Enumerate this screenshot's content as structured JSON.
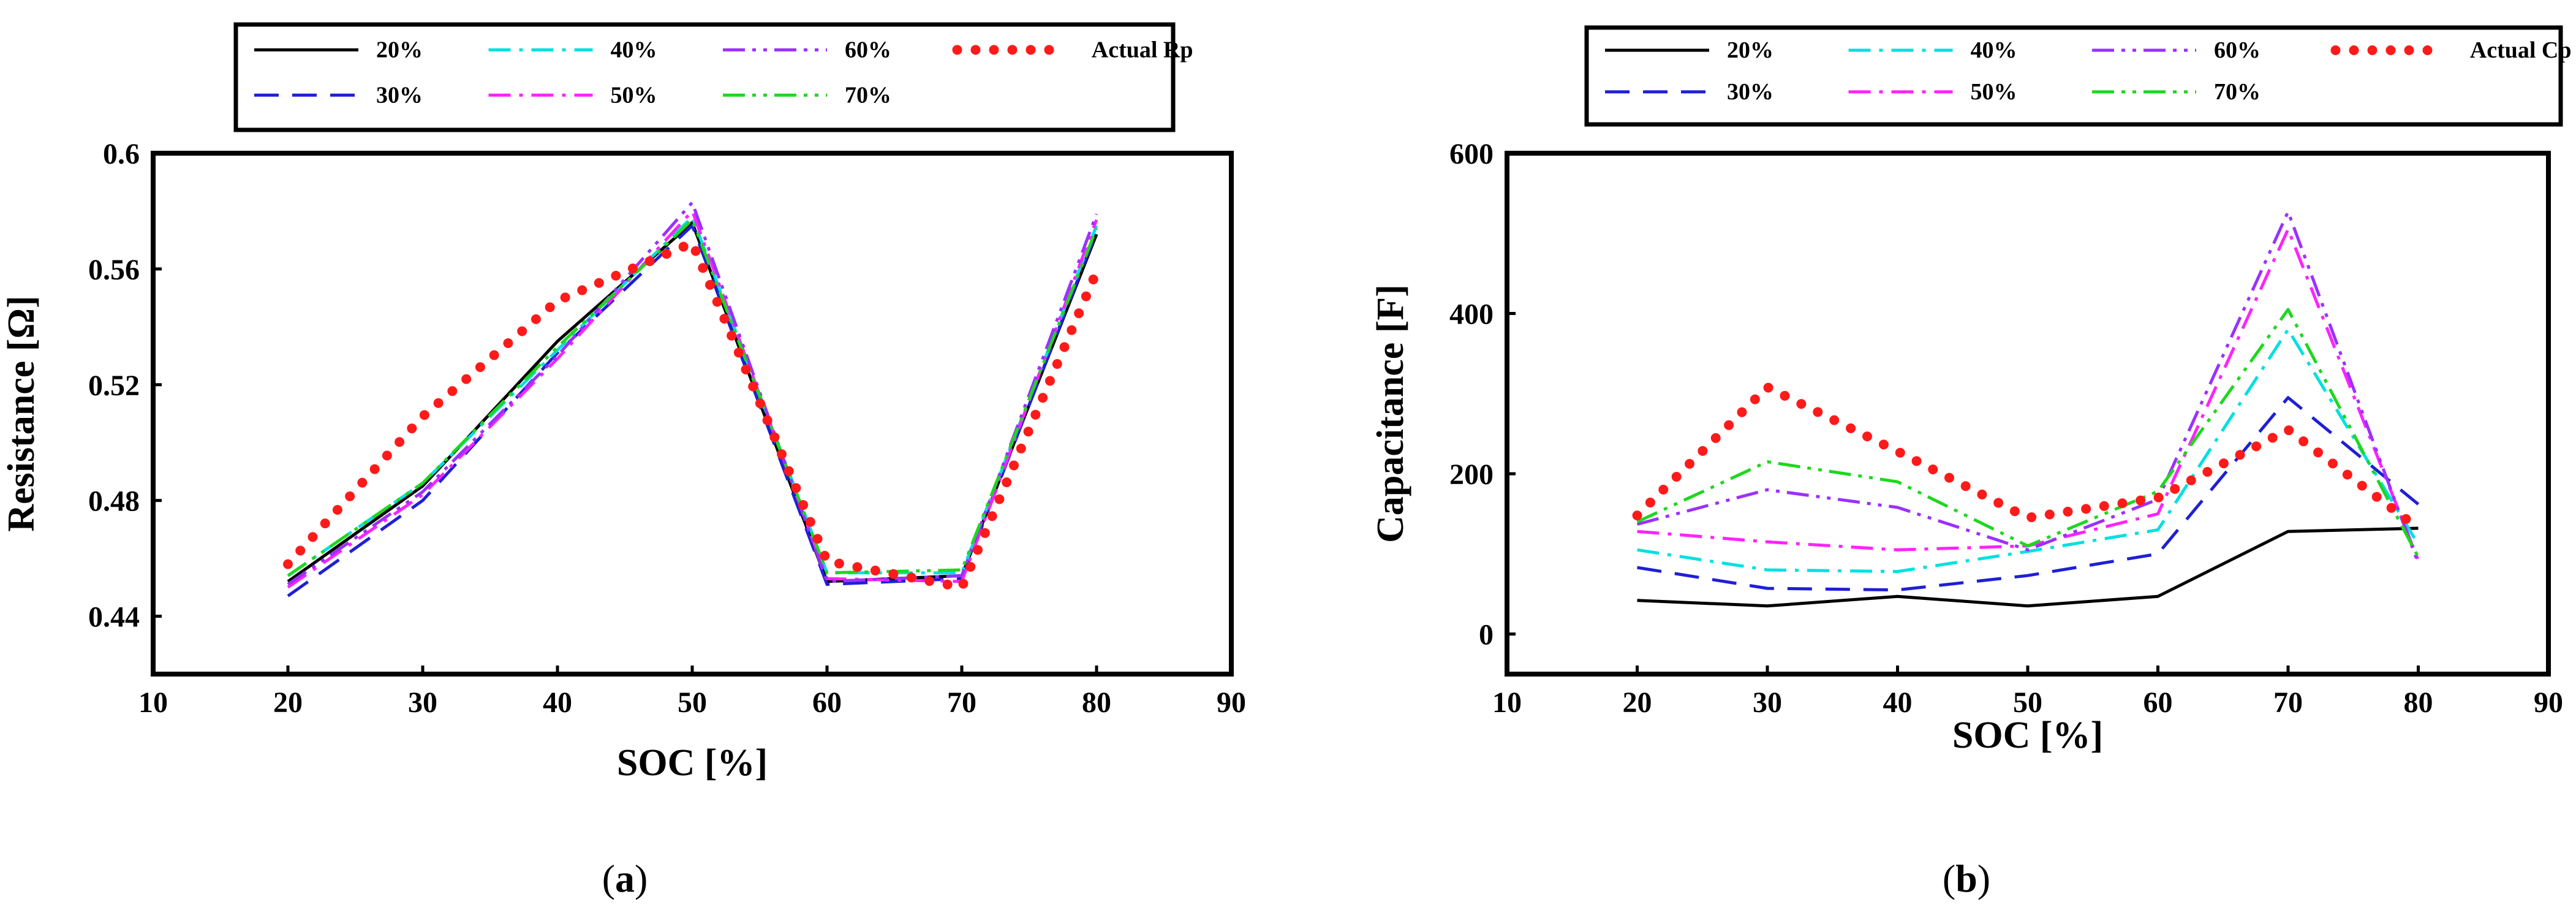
{
  "chart_data": [
    {
      "type": "line",
      "panel_label": "a",
      "title": "",
      "xlabel": "SOC [%]",
      "ylabel": "Resistance [Ω]",
      "xlim": [
        10,
        90
      ],
      "ylim": [
        0.42,
        0.6
      ],
      "xticks": [
        "10",
        "20",
        "30",
        "40",
        "50",
        "60",
        "70",
        "80",
        "90"
      ],
      "yticks": [
        "0.44",
        "0.48",
        "0.52",
        "0.56",
        "0.6"
      ],
      "x": [
        20,
        30,
        40,
        50,
        60,
        70,
        80
      ],
      "legend_position": "top",
      "series": [
        {
          "name": "20%",
          "color": "#000000",
          "style": "solid",
          "values": [
            0.452,
            0.485,
            0.535,
            0.576,
            0.452,
            0.454,
            0.572
          ]
        },
        {
          "name": "30%",
          "color": "#1f1fd6",
          "style": "dashed",
          "values": [
            0.447,
            0.48,
            0.531,
            0.575,
            0.451,
            0.453,
            0.573
          ]
        },
        {
          "name": "40%",
          "color": "#00e0e0",
          "style": "dashdot",
          "values": [
            0.454,
            0.486,
            0.532,
            0.578,
            0.455,
            0.455,
            0.575
          ]
        },
        {
          "name": "50%",
          "color": "#ff22ff",
          "style": "dashdot",
          "values": [
            0.45,
            0.482,
            0.529,
            0.58,
            0.453,
            0.452,
            0.577
          ]
        },
        {
          "name": "60%",
          "color": "#9b30ff",
          "style": "dashdotdot",
          "values": [
            0.451,
            0.483,
            0.53,
            0.583,
            0.452,
            0.454,
            0.579
          ]
        },
        {
          "name": "70%",
          "color": "#1ed71e",
          "style": "dashdotdot",
          "values": [
            0.454,
            0.486,
            0.533,
            0.577,
            0.455,
            0.456,
            0.574
          ]
        },
        {
          "name": "Actual Rp",
          "color": "#ff1a1a",
          "style": "dotted",
          "values": [
            0.458,
            0.509,
            0.549,
            0.569,
            0.459,
            0.45,
            0.559
          ]
        }
      ]
    },
    {
      "type": "line",
      "panel_label": "b",
      "title": "",
      "xlabel": "SOC [%]",
      "ylabel": "Capacitance [F]",
      "xlim": [
        10,
        90
      ],
      "ylim": [
        -50,
        600
      ],
      "xticks": [
        "10",
        "20",
        "30",
        "40",
        "50",
        "60",
        "70",
        "80",
        "90"
      ],
      "yticks": [
        "0",
        "200",
        "400",
        "600"
      ],
      "x": [
        20,
        30,
        40,
        50,
        60,
        70,
        80
      ],
      "legend_position": "top",
      "series": [
        {
          "name": "20%",
          "color": "#000000",
          "style": "solid",
          "values": [
            42,
            35,
            47,
            35,
            47,
            128,
            132
          ]
        },
        {
          "name": "30%",
          "color": "#1f1fd6",
          "style": "dashed",
          "values": [
            83,
            57,
            55,
            73,
            100,
            295,
            162
          ]
        },
        {
          "name": "40%",
          "color": "#00e0e0",
          "style": "dashdot",
          "values": [
            105,
            80,
            78,
            103,
            130,
            380,
            112
          ]
        },
        {
          "name": "50%",
          "color": "#ff22ff",
          "style": "dashdot",
          "values": [
            128,
            115,
            105,
            110,
            150,
            505,
            92
          ]
        },
        {
          "name": "60%",
          "color": "#9b30ff",
          "style": "dashdotdot",
          "values": [
            137,
            180,
            158,
            105,
            168,
            527,
            88
          ]
        },
        {
          "name": "70%",
          "color": "#1ed71e",
          "style": "dashdotdot",
          "values": [
            140,
            215,
            190,
            110,
            178,
            405,
            96
          ]
        },
        {
          "name": "Actual Cp",
          "color": "#ff1a1a",
          "style": "dotted",
          "values": [
            148,
            308,
            228,
            145,
            170,
            255,
            132
          ]
        }
      ]
    }
  ]
}
